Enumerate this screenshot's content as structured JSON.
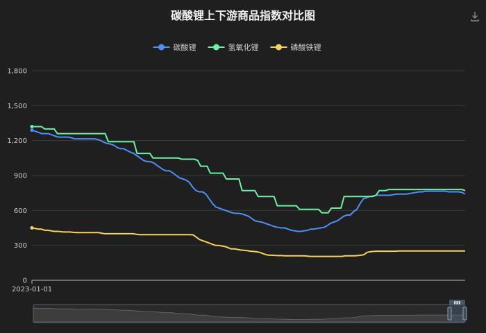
{
  "chart_data": {
    "type": "line",
    "title": "碳酸锂上下游商品指数对比图",
    "xlabel": "",
    "ylabel": "",
    "ylim": [
      0,
      1800
    ],
    "yticks": [
      "0",
      "300",
      "600",
      "900",
      "1,200",
      "1,500",
      "1,800"
    ],
    "ytick_values": [
      0,
      300,
      600,
      900,
      1200,
      1500,
      1800
    ],
    "x_tick_labels": [
      "2023-01-01"
    ],
    "grid": true,
    "legend_position": "top-center",
    "has_datazoom": true,
    "has_download_icon": true,
    "series": [
      {
        "name": "碳酸锂",
        "color": "#4f8ff7",
        "values": [
          1290,
          1280,
          1270,
          1260,
          1260,
          1260,
          1250,
          1240,
          1230,
          1230,
          1230,
          1230,
          1225,
          1215,
          1215,
          1215,
          1215,
          1215,
          1215,
          1215,
          1210,
          1200,
          1185,
          1175,
          1170,
          1160,
          1140,
          1130,
          1130,
          1115,
          1100,
          1090,
          1070,
          1050,
          1030,
          1020,
          1020,
          1010,
          990,
          970,
          950,
          940,
          940,
          920,
          900,
          880,
          870,
          860,
          840,
          800,
          770,
          760,
          760,
          740,
          700,
          660,
          630,
          620,
          610,
          600,
          590,
          580,
          575,
          575,
          570,
          560,
          550,
          530,
          510,
          505,
          500,
          490,
          480,
          470,
          460,
          455,
          450,
          450,
          440,
          430,
          425,
          420,
          420,
          425,
          430,
          440,
          440,
          445,
          450,
          455,
          470,
          490,
          500,
          510,
          530,
          550,
          560,
          560,
          590,
          610,
          660,
          700,
          710,
          720,
          725,
          730,
          730,
          730,
          730,
          730,
          735,
          740,
          740,
          740,
          740,
          745,
          750,
          755,
          760,
          760,
          765,
          765,
          765,
          765,
          765,
          765,
          765,
          760,
          760,
          760,
          760,
          755,
          740
        ]
      },
      {
        "name": "氢氧化锂",
        "color": "#6ff1a4",
        "values": [
          1320,
          1320,
          1320,
          1320,
          1300,
          1300,
          1300,
          1300,
          1260,
          1260,
          1260,
          1260,
          1260,
          1260,
          1260,
          1260,
          1260,
          1260,
          1260,
          1260,
          1260,
          1260,
          1260,
          1260,
          1190,
          1190,
          1190,
          1190,
          1190,
          1190,
          1190,
          1190,
          1190,
          1090,
          1090,
          1090,
          1090,
          1090,
          1050,
          1050,
          1050,
          1050,
          1050,
          1050,
          1050,
          1050,
          1050,
          1040,
          1040,
          1040,
          1040,
          1040,
          1030,
          980,
          980,
          980,
          920,
          920,
          920,
          920,
          920,
          870,
          870,
          870,
          870,
          870,
          770,
          770,
          770,
          770,
          770,
          720,
          720,
          720,
          720,
          720,
          720,
          640,
          640,
          640,
          640,
          640,
          640,
          640,
          610,
          610,
          610,
          610,
          610,
          610,
          610,
          580,
          580,
          580,
          620,
          620,
          620,
          620,
          720,
          720,
          720,
          720,
          720,
          720,
          720,
          720,
          720,
          720,
          730,
          770,
          770,
          770,
          780,
          780,
          780,
          780,
          780,
          780,
          780,
          780,
          780,
          780,
          780,
          780,
          780,
          780,
          780,
          780,
          780,
          780,
          780,
          780,
          780,
          780,
          780,
          780,
          770
        ]
      },
      {
        "name": "磷酸铁锂",
        "color": "#f7d35c",
        "values": [
          450,
          445,
          440,
          440,
          430,
          430,
          425,
          420,
          420,
          418,
          415,
          415,
          415,
          412,
          410,
          410,
          410,
          410,
          410,
          410,
          410,
          410,
          405,
          400,
          400,
          400,
          400,
          400,
          400,
          400,
          400,
          400,
          400,
          395,
          392,
          392,
          392,
          392,
          392,
          392,
          392,
          392,
          392,
          392,
          392,
          392,
          392,
          392,
          392,
          392,
          392,
          390,
          370,
          350,
          340,
          330,
          320,
          310,
          300,
          300,
          295,
          290,
          280,
          270,
          270,
          265,
          260,
          258,
          255,
          250,
          248,
          245,
          240,
          230,
          220,
          215,
          215,
          213,
          212,
          212,
          210,
          210,
          210,
          210,
          210,
          210,
          210,
          208,
          205,
          205,
          205,
          205,
          205,
          205,
          205,
          205,
          205,
          205,
          205,
          210,
          210,
          210,
          210,
          212,
          215,
          220,
          240,
          245,
          248,
          250,
          250,
          250,
          250,
          250,
          250,
          250,
          252,
          252,
          252,
          252,
          252,
          252,
          252,
          252,
          252,
          252,
          252,
          252,
          252,
          252,
          252,
          252,
          252,
          252,
          252,
          252,
          252,
          252
        ]
      }
    ]
  }
}
